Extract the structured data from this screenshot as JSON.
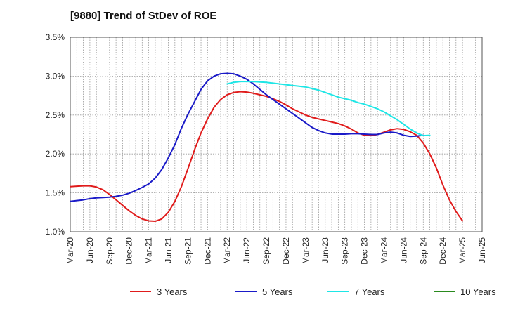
{
  "chart_data": {
    "type": "line",
    "title": "[9880]  Trend of StDev of ROE",
    "xlabel": "",
    "ylabel": "",
    "ylim": [
      1.0,
      3.5
    ],
    "y_ticks": [
      1.0,
      1.5,
      2.0,
      2.5,
      3.0,
      3.5
    ],
    "y_tick_labels": [
      "1.0%",
      "1.5%",
      "2.0%",
      "2.5%",
      "3.0%",
      "3.5%"
    ],
    "x_tick_labels": [
      "Mar-20",
      "Jun-20",
      "Sep-20",
      "Dec-20",
      "Mar-21",
      "Jun-21",
      "Sep-21",
      "Dec-21",
      "Mar-22",
      "Jun-22",
      "Sep-22",
      "Dec-22",
      "Mar-23",
      "Jun-23",
      "Sep-23",
      "Dec-23",
      "Mar-24",
      "Jun-24",
      "Sep-24",
      "Dec-24",
      "Mar-25",
      "Jun-25"
    ],
    "grid": true,
    "legend_position": "bottom",
    "series": [
      {
        "name": "3 Years",
        "color": "#e01b1b",
        "start_index": 0,
        "values": [
          1.58,
          1.585,
          1.59,
          1.59,
          1.575,
          1.54,
          1.48,
          1.41,
          1.34,
          1.27,
          1.21,
          1.165,
          1.14,
          1.135,
          1.165,
          1.25,
          1.39,
          1.58,
          1.81,
          2.05,
          2.27,
          2.45,
          2.6,
          2.7,
          2.76,
          2.79,
          2.8,
          2.795,
          2.78,
          2.76,
          2.74,
          2.71,
          2.675,
          2.63,
          2.58,
          2.54,
          2.5,
          2.47,
          2.45,
          2.43,
          2.41,
          2.39,
          2.36,
          2.32,
          2.27,
          2.24,
          2.235,
          2.25,
          2.28,
          2.31,
          2.325,
          2.315,
          2.285,
          2.24,
          2.14,
          2.0,
          1.82,
          1.6,
          1.41,
          1.26,
          1.14
        ]
      },
      {
        "name": "5 Years",
        "color": "#1a1ac8",
        "start_index": 0,
        "values": [
          1.39,
          1.4,
          1.41,
          1.425,
          1.435,
          1.44,
          1.445,
          1.455,
          1.47,
          1.495,
          1.53,
          1.57,
          1.615,
          1.69,
          1.8,
          1.95,
          2.12,
          2.33,
          2.51,
          2.67,
          2.83,
          2.94,
          3.0,
          3.03,
          3.035,
          3.03,
          3.0,
          2.96,
          2.9,
          2.83,
          2.76,
          2.7,
          2.64,
          2.58,
          2.52,
          2.46,
          2.4,
          2.34,
          2.3,
          2.27,
          2.255,
          2.255,
          2.255,
          2.26,
          2.26,
          2.255,
          2.25,
          2.25,
          2.27,
          2.28,
          2.27,
          2.24,
          2.225,
          2.23,
          2.24
        ]
      },
      {
        "name": "7 Years",
        "color": "#1ee6e6",
        "start_index": 24,
        "values": [
          2.9,
          2.92,
          2.93,
          2.93,
          2.93,
          2.925,
          2.92,
          2.91,
          2.9,
          2.89,
          2.88,
          2.87,
          2.86,
          2.84,
          2.82,
          2.79,
          2.76,
          2.73,
          2.71,
          2.69,
          2.66,
          2.64,
          2.61,
          2.58,
          2.54,
          2.49,
          2.44,
          2.38,
          2.32,
          2.27,
          2.235,
          2.24
        ]
      },
      {
        "name": "10 Years",
        "color": "#2a8a1e",
        "start_index": 0,
        "values": []
      }
    ]
  }
}
